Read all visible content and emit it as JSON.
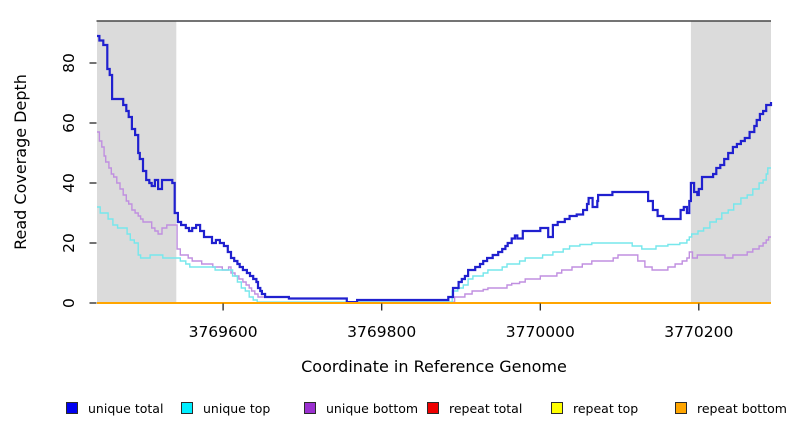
{
  "chart_data": {
    "type": "line",
    "step": true,
    "xlabel": "Coordinate in Reference Genome",
    "ylabel": "Read Coverage Depth",
    "xlim": [
      3769441,
      3770291
    ],
    "ylim": [
      0,
      94
    ],
    "x_ticks": [
      3769600,
      3769800,
      3770000,
      3770200
    ],
    "y_ticks": [
      0,
      20,
      40,
      60,
      80
    ],
    "grid": false,
    "legend_position": "bottom",
    "band_color": "#DBDBDB",
    "shaded_regions": [
      [
        3769441,
        3769541
      ],
      [
        3770190,
        3770291
      ]
    ],
    "draw_order": [
      2,
      1,
      0,
      3,
      4,
      5
    ],
    "series": [
      {
        "name": "unique total",
        "legend_fill": "#0000F0",
        "line_color": "#2020CF",
        "line_width": 2.2,
        "points": [
          [
            3769441,
            89
          ],
          [
            3769444,
            87.5
          ],
          [
            3769449,
            86
          ],
          [
            3769454,
            78
          ],
          [
            3769457,
            76
          ],
          [
            3769460,
            68
          ],
          [
            3769474,
            66
          ],
          [
            3769478,
            64
          ],
          [
            3769481,
            62
          ],
          [
            3769485,
            58
          ],
          [
            3769489,
            56
          ],
          [
            3769493,
            50
          ],
          [
            3769495,
            48
          ],
          [
            3769499,
            44
          ],
          [
            3769503,
            41
          ],
          [
            3769507,
            40
          ],
          [
            3769510,
            39
          ],
          [
            3769514,
            41
          ],
          [
            3769518,
            38
          ],
          [
            3769523,
            41
          ],
          [
            3769536,
            40
          ],
          [
            3769539,
            30
          ],
          [
            3769543,
            27
          ],
          [
            3769547,
            26
          ],
          [
            3769553,
            25
          ],
          [
            3769557,
            24
          ],
          [
            3769561,
            25
          ],
          [
            3769566,
            26
          ],
          [
            3769571,
            24
          ],
          [
            3769576,
            22
          ],
          [
            3769586,
            20
          ],
          [
            3769591,
            21
          ],
          [
            3769596,
            20
          ],
          [
            3769601,
            19
          ],
          [
            3769606,
            17
          ],
          [
            3769610,
            15
          ],
          [
            3769614,
            14
          ],
          [
            3769618,
            13
          ],
          [
            3769621,
            12
          ],
          [
            3769625,
            11
          ],
          [
            3769630,
            10
          ],
          [
            3769634,
            9
          ],
          [
            3769638,
            8
          ],
          [
            3769642,
            7
          ],
          [
            3769644,
            5
          ],
          [
            3769647,
            4
          ],
          [
            3769649,
            3
          ],
          [
            3769653,
            2
          ],
          [
            3769683,
            1.5
          ],
          [
            3769756,
            0.3
          ],
          [
            3769769,
            1
          ],
          [
            3769884,
            2
          ],
          [
            3769890,
            5
          ],
          [
            3769897,
            7
          ],
          [
            3769901,
            8
          ],
          [
            3769905,
            9
          ],
          [
            3769909,
            11
          ],
          [
            3769918,
            12
          ],
          [
            3769924,
            13
          ],
          [
            3769928,
            14
          ],
          [
            3769933,
            15
          ],
          [
            3769940,
            16
          ],
          [
            3769947,
            17
          ],
          [
            3769952,
            18
          ],
          [
            3769956,
            19
          ],
          [
            3769959,
            20
          ],
          [
            3769964,
            21.5
          ],
          [
            3769968,
            22.5
          ],
          [
            3769971,
            21.5
          ],
          [
            3769978,
            24
          ],
          [
            3770000,
            25
          ],
          [
            3770010,
            22
          ],
          [
            3770016,
            26
          ],
          [
            3770022,
            27
          ],
          [
            3770031,
            28
          ],
          [
            3770037,
            29
          ],
          [
            3770046,
            29.5
          ],
          [
            3770054,
            31
          ],
          [
            3770059,
            33
          ],
          [
            3770061,
            35
          ],
          [
            3770066,
            32
          ],
          [
            3770072,
            34
          ],
          [
            3770073,
            36
          ],
          [
            3770091,
            37
          ],
          [
            3770136,
            34
          ],
          [
            3770142,
            31
          ],
          [
            3770148,
            29
          ],
          [
            3770155,
            28
          ],
          [
            3770177,
            31
          ],
          [
            3770181,
            32
          ],
          [
            3770185,
            30
          ],
          [
            3770188,
            34
          ],
          [
            3770190,
            40
          ],
          [
            3770194,
            37
          ],
          [
            3770198,
            36
          ],
          [
            3770200,
            38
          ],
          [
            3770204,
            42
          ],
          [
            3770218,
            43
          ],
          [
            3770222,
            45
          ],
          [
            3770227,
            46
          ],
          [
            3770232,
            48
          ],
          [
            3770237,
            50
          ],
          [
            3770243,
            52
          ],
          [
            3770248,
            53
          ],
          [
            3770253,
            54
          ],
          [
            3770258,
            55
          ],
          [
            3770264,
            57
          ],
          [
            3770270,
            59
          ],
          [
            3770273,
            61
          ],
          [
            3770277,
            63
          ],
          [
            3770281,
            64
          ],
          [
            3770285,
            66
          ],
          [
            3770291,
            67
          ]
        ]
      },
      {
        "name": "unique top",
        "legend_fill": "#00EEFF",
        "line_color": "#76E7EC",
        "line_width": 1.4,
        "points": [
          [
            3769441,
            32
          ],
          [
            3769445,
            30
          ],
          [
            3769455,
            28
          ],
          [
            3769461,
            26
          ],
          [
            3769467,
            25
          ],
          [
            3769479,
            23
          ],
          [
            3769483,
            21
          ],
          [
            3769488,
            20
          ],
          [
            3769493,
            16
          ],
          [
            3769496,
            15
          ],
          [
            3769508,
            16
          ],
          [
            3769524,
            15
          ],
          [
            3769546,
            14
          ],
          [
            3769553,
            13
          ],
          [
            3769558,
            12
          ],
          [
            3769590,
            11
          ],
          [
            3769612,
            9
          ],
          [
            3769618,
            7
          ],
          [
            3769623,
            5
          ],
          [
            3769628,
            4
          ],
          [
            3769633,
            2
          ],
          [
            3769638,
            1
          ],
          [
            3769643,
            0.3
          ],
          [
            3769889,
            4
          ],
          [
            3769896,
            5
          ],
          [
            3769903,
            6
          ],
          [
            3769909,
            8
          ],
          [
            3769915,
            9
          ],
          [
            3769928,
            10
          ],
          [
            3769934,
            11
          ],
          [
            3769952,
            12
          ],
          [
            3769958,
            13
          ],
          [
            3769974,
            14
          ],
          [
            3769981,
            15
          ],
          [
            3770003,
            16
          ],
          [
            3770016,
            17
          ],
          [
            3770029,
            18
          ],
          [
            3770037,
            19
          ],
          [
            3770050,
            19.5
          ],
          [
            3770065,
            20
          ],
          [
            3770116,
            19
          ],
          [
            3770128,
            18
          ],
          [
            3770146,
            19
          ],
          [
            3770161,
            19.5
          ],
          [
            3770176,
            20
          ],
          [
            3770185,
            21
          ],
          [
            3770188,
            22
          ],
          [
            3770191,
            23
          ],
          [
            3770199,
            24
          ],
          [
            3770206,
            25
          ],
          [
            3770214,
            27
          ],
          [
            3770222,
            28
          ],
          [
            3770229,
            30
          ],
          [
            3770237,
            31
          ],
          [
            3770244,
            33
          ],
          [
            3770253,
            35
          ],
          [
            3770261,
            36
          ],
          [
            3770268,
            38
          ],
          [
            3770276,
            40
          ],
          [
            3770281,
            41
          ],
          [
            3770285,
            43
          ],
          [
            3770287,
            45
          ]
        ]
      },
      {
        "name": "unique bottom",
        "legend_fill": "#9B30D0",
        "line_color": "#C08FE0",
        "line_width": 1.4,
        "points": [
          [
            3769441,
            57
          ],
          [
            3769444,
            54
          ],
          [
            3769447,
            52
          ],
          [
            3769450,
            49
          ],
          [
            3769452,
            47
          ],
          [
            3769456,
            45
          ],
          [
            3769459,
            43
          ],
          [
            3769462,
            42
          ],
          [
            3769466,
            40
          ],
          [
            3769470,
            38
          ],
          [
            3769474,
            36
          ],
          [
            3769478,
            34
          ],
          [
            3769481,
            33
          ],
          [
            3769485,
            31
          ],
          [
            3769489,
            30
          ],
          [
            3769493,
            29
          ],
          [
            3769496,
            28
          ],
          [
            3769499,
            27
          ],
          [
            3769510,
            25
          ],
          [
            3769514,
            24
          ],
          [
            3769518,
            23
          ],
          [
            3769523,
            25
          ],
          [
            3769529,
            26
          ],
          [
            3769542,
            18
          ],
          [
            3769546,
            16
          ],
          [
            3769556,
            15
          ],
          [
            3769561,
            14
          ],
          [
            3769573,
            13
          ],
          [
            3769587,
            12
          ],
          [
            3769599,
            11
          ],
          [
            3769607,
            12
          ],
          [
            3769610,
            10
          ],
          [
            3769615,
            9
          ],
          [
            3769620,
            8
          ],
          [
            3769625,
            7
          ],
          [
            3769629,
            6
          ],
          [
            3769633,
            5
          ],
          [
            3769636,
            4
          ],
          [
            3769640,
            3
          ],
          [
            3769644,
            2
          ],
          [
            3769683,
            1.5
          ],
          [
            3769756,
            0.3
          ],
          [
            3769892,
            2
          ],
          [
            3769905,
            3
          ],
          [
            3769914,
            4
          ],
          [
            3769928,
            4.5
          ],
          [
            3769934,
            5
          ],
          [
            3769958,
            6
          ],
          [
            3769964,
            6.5
          ],
          [
            3769974,
            7
          ],
          [
            3769981,
            8
          ],
          [
            3770000,
            9
          ],
          [
            3770021,
            10
          ],
          [
            3770027,
            11
          ],
          [
            3770040,
            12
          ],
          [
            3770053,
            13
          ],
          [
            3770065,
            14
          ],
          [
            3770092,
            15
          ],
          [
            3770098,
            16
          ],
          [
            3770123,
            14
          ],
          [
            3770132,
            12
          ],
          [
            3770141,
            11
          ],
          [
            3770151,
            11
          ],
          [
            3770161,
            12
          ],
          [
            3770170,
            13
          ],
          [
            3770179,
            14
          ],
          [
            3770185,
            15
          ],
          [
            3770188,
            17
          ],
          [
            3770192,
            15
          ],
          [
            3770198,
            16
          ],
          [
            3770233,
            15
          ],
          [
            3770243,
            16
          ],
          [
            3770261,
            17
          ],
          [
            3770268,
            18
          ],
          [
            3770276,
            19
          ],
          [
            3770281,
            20
          ],
          [
            3770285,
            21
          ],
          [
            3770288,
            22
          ]
        ]
      },
      {
        "name": "repeat total",
        "legend_fill": "#EE0000",
        "line_color": "#DD0000",
        "line_width": 1.2,
        "points": [
          [
            3769441,
            0
          ]
        ]
      },
      {
        "name": "repeat top",
        "legend_fill": "#FFFF00",
        "line_color": "#F0E000",
        "line_width": 1.2,
        "points": [
          [
            3769441,
            0
          ]
        ]
      },
      {
        "name": "repeat bottom",
        "legend_fill": "#FFA500",
        "line_color": "#FFA500",
        "line_width": 2,
        "points": [
          [
            3769441,
            0
          ]
        ]
      }
    ]
  }
}
